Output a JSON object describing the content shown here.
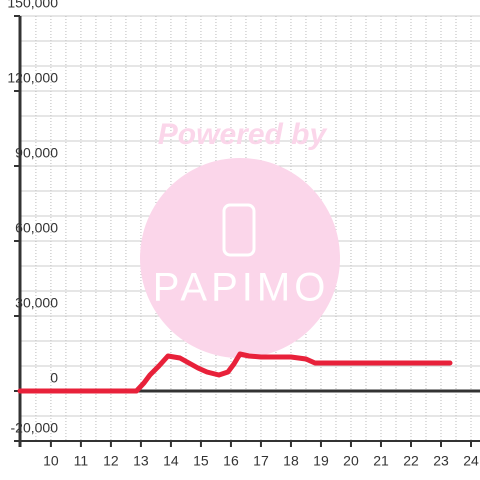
{
  "chart_data": {
    "type": "line",
    "watermark": {
      "line1": "Powered by",
      "line2": "PAPIMO"
    },
    "x": [
      8.97,
      12.85,
      13.1,
      13.3,
      13.6,
      13.9,
      14.3,
      14.6,
      14.9,
      15.2,
      15.6,
      15.9,
      16.1,
      16.3,
      16.6,
      17,
      18,
      18.5,
      18.8,
      23.3
    ],
    "series": [
      {
        "color": "#e8213a",
        "values": [
          0,
          0,
          3200,
          6400,
          10000,
          14000,
          13200,
          11200,
          9200,
          7600,
          6400,
          7600,
          10800,
          14800,
          14000,
          13600,
          13600,
          12800,
          11200,
          11200
        ]
      }
    ],
    "xlim": [
      8.97,
      24.3
    ],
    "ylim": [
      -20000,
      150000
    ],
    "xticks": [
      10,
      11,
      12,
      13,
      14,
      15,
      16,
      17,
      18,
      19,
      20,
      21,
      22,
      23,
      24
    ],
    "yticks": [
      {
        "value": 150000,
        "label": "150,000"
      },
      {
        "value": 120000,
        "label": "120,000"
      },
      {
        "value": 90000,
        "label": "90,000"
      },
      {
        "value": 60000,
        "label": "60,000"
      },
      {
        "value": 30000,
        "label": "30,000"
      },
      0,
      {
        "value": -20000,
        "label": "-20,000"
      }
    ],
    "ygrid": [
      -10000,
      10000,
      20000,
      40000,
      50000,
      70000,
      80000,
      100000,
      110000,
      130000,
      140000
    ],
    "xgrid": [
      9.5,
      10.5,
      11.5,
      12.5,
      13.5,
      14.5,
      15.5,
      16.5,
      17.5,
      18.5,
      19.5,
      20.5,
      21.5,
      22.5,
      23.5
    ],
    "grid": true
  }
}
